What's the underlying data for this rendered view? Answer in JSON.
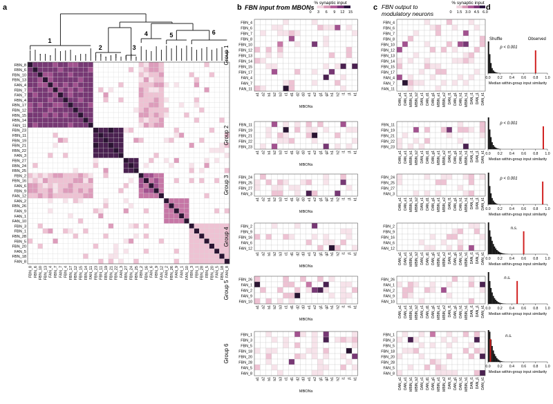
{
  "panel_letters": {
    "a": "a",
    "b": "b",
    "c": "c",
    "d": "d"
  },
  "panel_titles": {
    "b": "FBN input from MBONs",
    "c": [
      "FBN output to",
      "modulatory neurons"
    ]
  },
  "colorbars": {
    "b": {
      "label": "% synaptic input",
      "ticks": [
        "0",
        "3",
        "6",
        "9",
        "12",
        "15"
      ],
      "colors": [
        "#ffffff",
        "#f2d4df",
        "#d99bb8",
        "#b25d99",
        "#7d3578",
        "#2c1640"
      ]
    },
    "c": {
      "label": "% synaptic input",
      "ticks": [
        "0",
        "1.5",
        "3.0",
        "4.5",
        "6.0"
      ],
      "colors": [
        "#ffffff",
        "#f2d4df",
        "#d99bb8",
        "#b25d99",
        "#7d3578",
        "#2c1640"
      ]
    }
  },
  "dendrogram_labels": [
    "1",
    "2",
    "3",
    "4",
    "5",
    "6"
  ],
  "chart_data": [
    {
      "type": "heatmap",
      "panel": "a",
      "labels": [
        "FBN_8",
        "FBN_6",
        "FBN_10",
        "FBN_13",
        "FAN_4",
        "FBN_7",
        "FAN_7",
        "FBN_4",
        "FBN_17",
        "FBN_12",
        "FBN_15",
        "FBN_14",
        "FAN_11",
        "FBN_23",
        "FBN_11",
        "FBN_19",
        "FBN_21",
        "FBN_22",
        "FAN_3",
        "FBN_27",
        "FBN_24",
        "FBN_25",
        "FBN_2",
        "FBN_16",
        "FAN_6",
        "FBN_9",
        "FAN_12",
        "FAN_2",
        "FBN_26",
        "FAN_9",
        "FAN_1",
        "FAN_10",
        "FBN_3",
        "FBN_1",
        "FBN_28",
        "FBN_5",
        "FBN_20",
        "FAN_5",
        "FBN_18",
        "FAN_8"
      ]
    },
    {
      "type": "heatmap",
      "panel": "b",
      "xlabel": "MBONs",
      "columns": [
        "a1",
        "a2",
        "b1",
        "b2",
        "b3",
        "c1",
        "d1",
        "d2",
        "d3",
        "e1",
        "e2",
        "g1",
        "g2",
        "h1",
        "h2",
        "i1",
        "j1",
        "k1"
      ],
      "groups": [
        {
          "name": "Group 1",
          "rows": [
            "FBN_4",
            "FBN_6",
            "FBN_7",
            "FBN_8",
            "FBN_10",
            "FBN_12",
            "FBN_13",
            "FBN_14",
            "FBN_15",
            "FBN_17",
            "FAN_4",
            "FAN_7",
            "FAN_11"
          ]
        },
        {
          "name": "Group 2",
          "rows": [
            "FBN_11",
            "FBN_19",
            "FBN_21",
            "FBN_22",
            "FBN_23"
          ]
        },
        {
          "name": "Group 3",
          "rows": [
            "FBN_24",
            "FBN_25",
            "FBN_27",
            "FAN_3"
          ]
        },
        {
          "name": "Group 4",
          "rows": [
            "FBN_2",
            "FBN_9",
            "FBN_16",
            "FAN_6",
            "FAN_12"
          ]
        },
        {
          "name": "Group 5",
          "rows": [
            "FBN_26",
            "FAN_1",
            "FAN_2",
            "FAN_9",
            "FAN_10"
          ]
        },
        {
          "name": "Group 6",
          "rows": [
            "FBN_1",
            "FBN_3",
            "FBN_5",
            "FBN_18",
            "FBN_20",
            "FBN_28",
            "FAN_5",
            "FAN_8"
          ]
        }
      ]
    },
    {
      "type": "heatmap",
      "panel": "c",
      "columns": [
        "OAN_a1",
        "OAN_e1",
        "MBIN_b1",
        "MBIN_b2",
        "DAN_c1",
        "DAN_d1",
        "OAN_g1",
        "MBIN_e1",
        "MBIN_e2",
        "DAN_f1",
        "DAN_g1",
        "OAN_h1",
        "MBIN_h1",
        "DAN_i1",
        "DAN_j1",
        "DAN_k1"
      ],
      "groups": [
        {
          "name": "Group 1",
          "rows": [
            "FBN_4",
            "FBN_6",
            "FBN_7",
            "FBN_8",
            "FBN_10",
            "FBN_12",
            "FBN_13",
            "FBN_14",
            "FBN_15",
            "FBN_17",
            "FAN_4",
            "FAN_7",
            "FAN_11"
          ]
        },
        {
          "name": "Group 2",
          "rows": [
            "FBN_11",
            "FBN_19",
            "FBN_21",
            "FBN_22",
            "FBN_23"
          ]
        },
        {
          "name": "Group 3",
          "rows": [
            "FBN_24",
            "FBN_25",
            "FBN_27",
            "FAN_3"
          ]
        },
        {
          "name": "Group 4",
          "rows": [
            "FBN_2",
            "FBN_9",
            "FBN_16",
            "FAN_6",
            "FAN_12"
          ]
        },
        {
          "name": "Group 5",
          "rows": [
            "FBN_26",
            "FAN_1",
            "FAN_2",
            "FAN_9",
            "FAN_10"
          ]
        },
        {
          "name": "Group 6",
          "rows": [
            "FBN_1",
            "FBN_3",
            "FBN_5",
            "FBN_18",
            "FBN_20",
            "FBN_28",
            "FAN_5",
            "FAN_8"
          ]
        }
      ]
    },
    {
      "type": "bar",
      "panel": "d",
      "xlabel": "Median within-group input similarity",
      "xticks": [
        "0.0",
        "0.2",
        "0.4",
        "0.6",
        "0.8",
        "1.0"
      ],
      "xlim": [
        0,
        1
      ],
      "annotations": {
        "shuffle": "Shuffle",
        "observed": "Observed"
      },
      "series": [
        {
          "group": "Group 1",
          "observed": 0.8,
          "p": "p < 0.001",
          "counts": [
            100,
            60,
            32,
            16,
            9,
            5,
            3,
            2,
            1,
            0.5
          ]
        },
        {
          "group": "Group 2",
          "observed": 0.93,
          "p": "p < 0.001",
          "counts": [
            100,
            62,
            38,
            22,
            13,
            8,
            5,
            3,
            2,
            1,
            0.5
          ]
        },
        {
          "group": "Group 3",
          "observed": 0.92,
          "p": "p < 0.001",
          "counts": [
            100,
            58,
            35,
            20,
            12,
            7,
            4,
            2,
            1,
            0.5
          ]
        },
        {
          "group": "Group 4",
          "observed": 0.6,
          "p": "n.s.",
          "counts": [
            100,
            75,
            55,
            42,
            32,
            24,
            18,
            13,
            10,
            7,
            5,
            3.5,
            2.5,
            1.8,
            1.2,
            0.8,
            0.5
          ]
        },
        {
          "group": "Group 5",
          "observed": 0.49,
          "p": "n.s.",
          "counts": [
            100,
            72,
            50,
            36,
            25,
            18,
            13,
            9,
            6,
            4,
            3,
            2,
            1.3,
            0.8,
            0.5
          ]
        },
        {
          "group": "Group 6",
          "observed": 0.04,
          "p": "n.s.",
          "counts": [
            100,
            95,
            70,
            50,
            36,
            25,
            18,
            12,
            8,
            5,
            3,
            2,
            1,
            0.5
          ]
        }
      ]
    }
  ]
}
